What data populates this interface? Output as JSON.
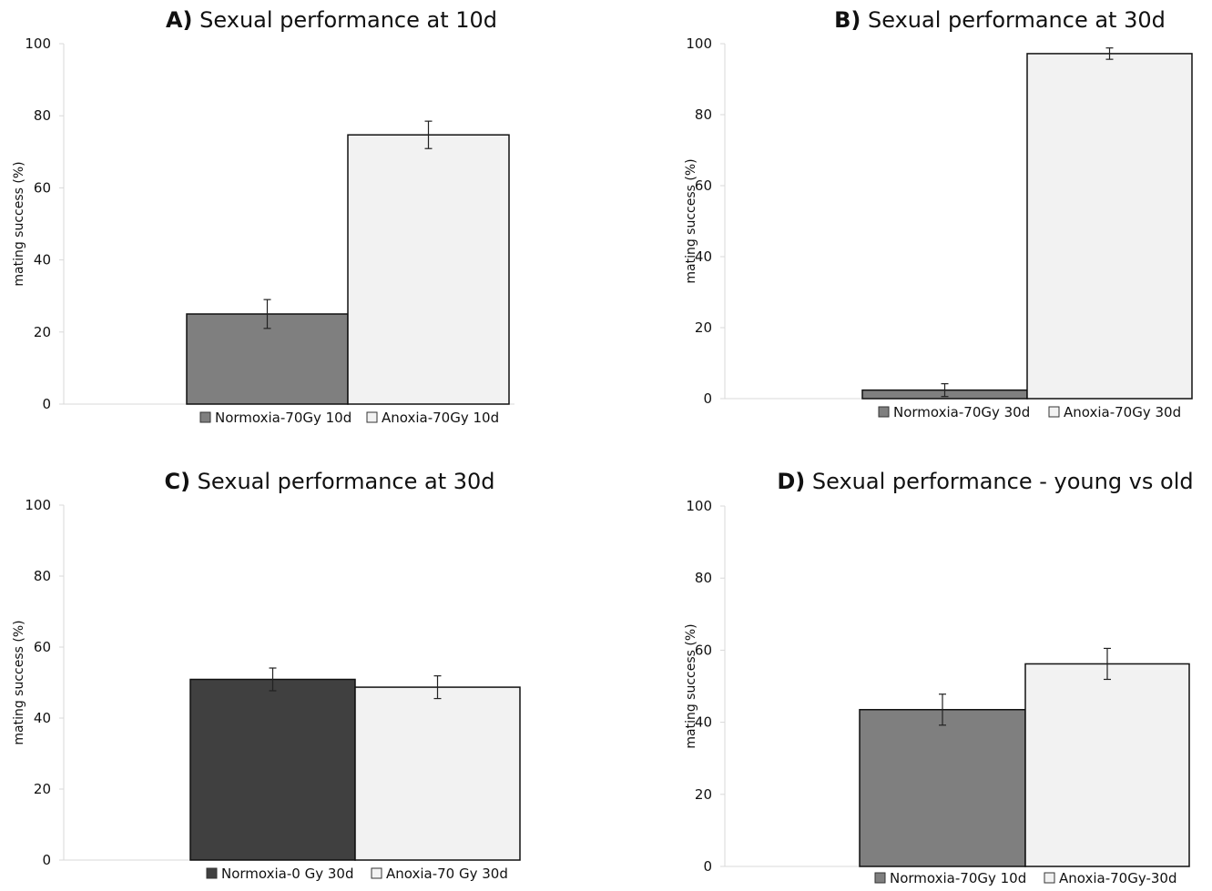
{
  "figure": {
    "charts": [
      {
        "letter": "A)",
        "heading": "Sexual performance at 10d"
      },
      {
        "letter": "B)",
        "heading": "Sexual performance at 30d"
      },
      {
        "letter": "C)",
        "heading": "Sexual performance at 30d"
      },
      {
        "letter": "D)",
        "heading": "Sexual performance - young vs old"
      }
    ]
  },
  "chart_data": [
    {
      "type": "bar",
      "title": "A) Sexual performance at 10d",
      "ylabel": "mating success (%)",
      "ylim": [
        0,
        100
      ],
      "yticks": [
        "0",
        "20",
        "40",
        "60",
        "80",
        "100"
      ],
      "grid": false,
      "legend_position": "bottom",
      "series": [
        {
          "name": "Normoxia-70Gy 10d",
          "value": 25,
          "error": 4,
          "color": "#7f7f7f"
        },
        {
          "name": "Anoxia-70Gy 10d",
          "value": 74.7,
          "error": 3.8,
          "color": "#f2f2f2"
        }
      ]
    },
    {
      "type": "bar",
      "title": "B) Sexual performance at 30d",
      "ylabel": "mating success (%)",
      "ylim": [
        0,
        100
      ],
      "yticks": [
        "0",
        "20",
        "40",
        "60",
        "80",
        "100"
      ],
      "grid": false,
      "legend_position": "bottom",
      "series": [
        {
          "name": "Normoxia-70Gy 30d",
          "value": 2.4,
          "error": 1.8,
          "color": "#7f7f7f"
        },
        {
          "name": "Anoxia-70Gy 30d",
          "value": 97.2,
          "error": 1.6,
          "color": "#f2f2f2"
        }
      ]
    },
    {
      "type": "bar",
      "title": "C) Sexual performance at 30d",
      "ylabel": "mating success (%)",
      "ylim": [
        0,
        100
      ],
      "yticks": [
        "0",
        "20",
        "40",
        "60",
        "80",
        "100"
      ],
      "grid": false,
      "legend_position": "bottom",
      "series": [
        {
          "name": "Normoxia-0 Gy 30d",
          "value": 50.9,
          "error": 3.2,
          "color": "#404040"
        },
        {
          "name": "Anoxia-70 Gy 30d",
          "value": 48.7,
          "error": 3.2,
          "color": "#f2f2f2"
        }
      ]
    },
    {
      "type": "bar",
      "title": "D) Sexual performance - young vs old",
      "ylabel": "mating success (%)",
      "ylim": [
        0,
        100
      ],
      "yticks": [
        "0",
        "20",
        "40",
        "60",
        "80",
        "100"
      ],
      "grid": false,
      "legend_position": "bottom",
      "series": [
        {
          "name": "Normoxia-70Gy 10d",
          "value": 43.5,
          "error": 4.3,
          "color": "#7f7f7f"
        },
        {
          "name": "Anoxia-70Gy-30d",
          "value": 56.2,
          "error": 4.3,
          "color": "#f2f2f2"
        }
      ]
    }
  ]
}
